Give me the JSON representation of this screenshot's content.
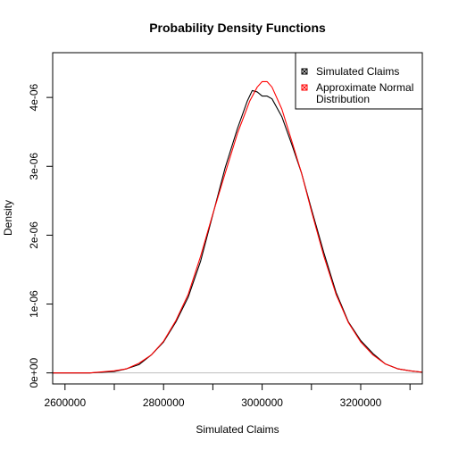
{
  "chart_data": {
    "type": "line",
    "title": "Probability Density Functions",
    "xlabel": "Simulated Claims",
    "ylabel": "Density",
    "xlim": [
      2575000,
      3325000
    ],
    "ylim": [
      -1.6e-07,
      4.65e-06
    ],
    "x_ticks": [
      {
        "value": 2600000,
        "label": "2600000"
      },
      {
        "value": 2700000,
        "label": ""
      },
      {
        "value": 2800000,
        "label": "2800000"
      },
      {
        "value": 2900000,
        "label": ""
      },
      {
        "value": 3000000,
        "label": "3000000"
      },
      {
        "value": 3100000,
        "label": ""
      },
      {
        "value": 3200000,
        "label": "3200000"
      },
      {
        "value": 3300000,
        "label": ""
      }
    ],
    "y_ticks": [
      {
        "value": 0,
        "label": "0e+00"
      },
      {
        "value": 1e-06,
        "label": "1e-06"
      },
      {
        "value": 2e-06,
        "label": "2e-06"
      },
      {
        "value": 3e-06,
        "label": "3e-06"
      },
      {
        "value": 4e-06,
        "label": "4e-06"
      }
    ],
    "baseline": {
      "y": 0,
      "color": "#bebebe"
    },
    "legend": {
      "position": "top-right"
    },
    "series": [
      {
        "name": "Simulated Claims",
        "color": "#000000",
        "x": [
          2575000,
          2650000,
          2700000,
          2725000,
          2750000,
          2775000,
          2800000,
          2825000,
          2850000,
          2875000,
          2900000,
          2925000,
          2950000,
          2960000,
          2970000,
          2980000,
          2990000,
          3000000,
          3010000,
          3020000,
          3040000,
          3060000,
          3080000,
          3100000,
          3125000,
          3150000,
          3175000,
          3200000,
          3225000,
          3250000,
          3275000,
          3300000,
          3325000
        ],
        "y": [
          0,
          0,
          2e-08,
          6e-08,
          1.2e-07,
          2.6e-07,
          4.5e-07,
          7.4e-07,
          1.1e-06,
          1.62e-06,
          2.3e-06,
          2.98e-06,
          3.55e-06,
          3.75e-06,
          3.95e-06,
          4.1e-06,
          4.08e-06,
          4.02e-06,
          4.02e-06,
          3.98e-06,
          3.72e-06,
          3.32e-06,
          2.9e-06,
          2.38e-06,
          1.75e-06,
          1.17e-06,
          7.4e-07,
          4.7e-07,
          2.8e-07,
          1.3e-07,
          6e-08,
          3e-08,
          1e-08
        ]
      },
      {
        "name": "Approximate Normal\nDistribution",
        "color": "#ff0000",
        "x": [
          2575000,
          2650000,
          2700000,
          2725000,
          2750000,
          2775000,
          2800000,
          2825000,
          2850000,
          2875000,
          2900000,
          2925000,
          2950000,
          2975000,
          2990000,
          3000000,
          3010000,
          3020000,
          3040000,
          3060000,
          3080000,
          3100000,
          3125000,
          3150000,
          3175000,
          3200000,
          3225000,
          3250000,
          3275000,
          3300000,
          3325000
        ],
        "y": [
          0,
          0,
          3e-08,
          6e-08,
          1.4e-07,
          2.6e-07,
          4.6e-07,
          7.6e-07,
          1.14e-06,
          1.69e-06,
          2.31e-06,
          2.9e-06,
          3.48e-06,
          3.95e-06,
          4.15e-06,
          4.23e-06,
          4.23e-06,
          4.15e-06,
          3.83e-06,
          3.37e-06,
          2.9e-06,
          2.35e-06,
          1.7e-06,
          1.14e-06,
          7.3e-07,
          4.5e-07,
          2.6e-07,
          1.3e-07,
          6e-08,
          3e-08,
          1e-08
        ]
      }
    ]
  }
}
